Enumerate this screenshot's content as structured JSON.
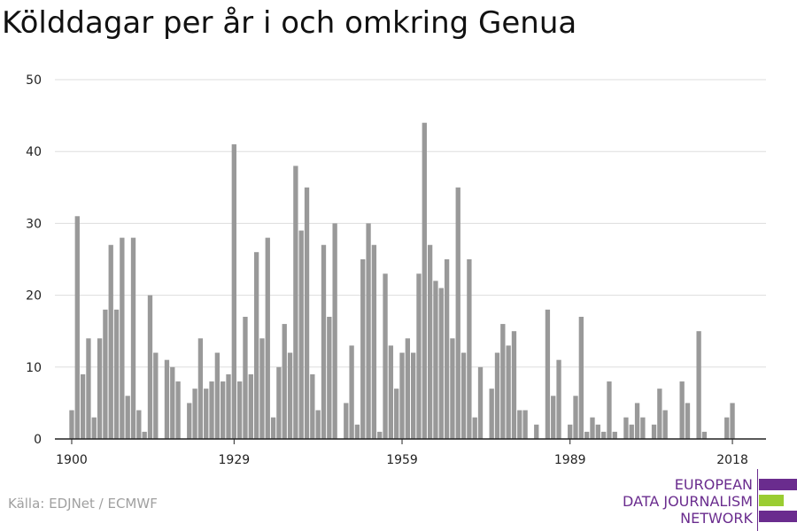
{
  "title": "Kölddagar per år i och omkring Genua",
  "source": "Källa: EDJNet / ECMWF",
  "logo": {
    "line1": "EUROPEAN",
    "line2": "DATA JOURNALISM",
    "line3": "NETWORK",
    "colors": [
      "#6a2c8e",
      "#9acd32",
      "#6a2c8e"
    ]
  },
  "chart_data": {
    "type": "bar",
    "title": "Kölddagar per år i och omkring Genua",
    "xlabel": "",
    "ylabel": "",
    "ylim": [
      0,
      50
    ],
    "yticks": [
      0,
      10,
      20,
      30,
      40,
      50
    ],
    "xticks": [
      1900,
      1929,
      1959,
      1989,
      2018
    ],
    "xlim": [
      1897,
      2024
    ],
    "bar_color": "#999999",
    "grid": true,
    "years": [
      1900,
      1901,
      1902,
      1903,
      1904,
      1905,
      1906,
      1907,
      1908,
      1909,
      1910,
      1911,
      1912,
      1913,
      1914,
      1915,
      1916,
      1917,
      1918,
      1919,
      1920,
      1921,
      1922,
      1923,
      1924,
      1925,
      1926,
      1927,
      1928,
      1929,
      1930,
      1931,
      1932,
      1933,
      1934,
      1935,
      1936,
      1937,
      1938,
      1939,
      1940,
      1941,
      1942,
      1943,
      1944,
      1945,
      1946,
      1947,
      1948,
      1949,
      1950,
      1951,
      1952,
      1953,
      1954,
      1955,
      1956,
      1957,
      1958,
      1959,
      1960,
      1961,
      1962,
      1963,
      1964,
      1965,
      1966,
      1967,
      1968,
      1969,
      1970,
      1971,
      1972,
      1973,
      1974,
      1975,
      1976,
      1977,
      1978,
      1979,
      1980,
      1981,
      1982,
      1983,
      1984,
      1985,
      1986,
      1987,
      1988,
      1989,
      1990,
      1991,
      1992,
      1993,
      1994,
      1995,
      1996,
      1997,
      1998,
      1999,
      2000,
      2001,
      2002,
      2003,
      2004,
      2005,
      2006,
      2007,
      2008,
      2009,
      2010,
      2011,
      2012,
      2013,
      2014,
      2015,
      2016,
      2017,
      2018,
      2019
    ],
    "values": [
      4,
      31,
      9,
      14,
      3,
      14,
      18,
      27,
      18,
      28,
      6,
      28,
      4,
      1,
      20,
      12,
      0,
      11,
      10,
      8,
      0,
      5,
      7,
      14,
      7,
      8,
      12,
      8,
      9,
      41,
      8,
      17,
      9,
      26,
      14,
      28,
      3,
      10,
      16,
      12,
      38,
      29,
      35,
      9,
      4,
      27,
      17,
      30,
      0,
      5,
      13,
      2,
      25,
      30,
      27,
      1,
      23,
      13,
      7,
      12,
      14,
      12,
      23,
      44,
      27,
      22,
      21,
      25,
      14,
      35,
      12,
      25,
      3,
      10,
      0,
      7,
      12,
      16,
      13,
      15,
      4,
      4,
      0,
      2,
      0,
      18,
      6,
      11,
      0,
      2,
      6,
      17,
      1,
      3,
      2,
      1,
      8,
      1,
      0,
      3,
      2,
      5,
      3,
      0,
      2,
      7,
      4,
      0,
      0,
      8,
      5,
      0,
      15,
      1,
      0,
      0,
      0,
      3,
      5,
      0
    ]
  }
}
